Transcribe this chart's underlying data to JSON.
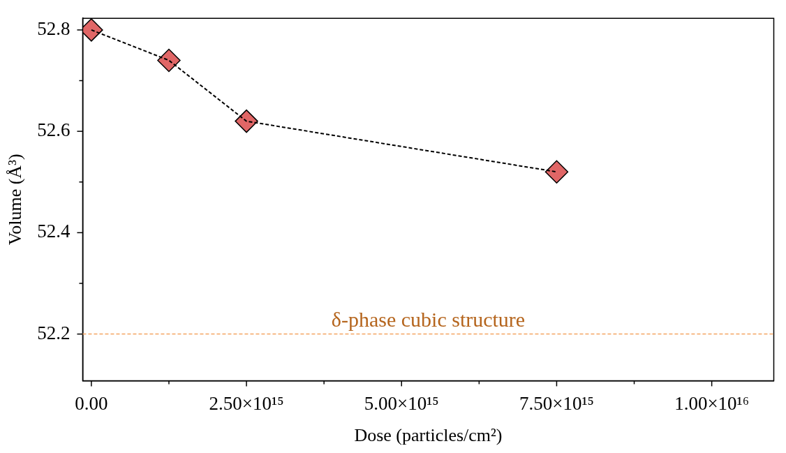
{
  "chart_data": {
    "type": "line",
    "xlabel": "Dose (particles/cm²)",
    "ylabel": "Volume (Å³)",
    "x": [
      0,
      1250000000000000.0,
      2500000000000000.0,
      7500000000000000.0
    ],
    "series": [
      {
        "color": "#e06666",
        "values": [
          52.8,
          52.74,
          52.62,
          52.52
        ]
      }
    ],
    "xlim": [
      -140000000000000.0,
      1.1e+16
    ],
    "ylim": [
      52.108,
      52.823
    ],
    "xticks": [
      {
        "value": 0,
        "label": "0.00"
      },
      {
        "value": 1250000000000000.0,
        "label": null
      },
      {
        "value": 2500000000000000.0,
        "label": "2.50×10¹⁵"
      },
      {
        "value": 3750000000000000.0,
        "label": null
      },
      {
        "value": 5000000000000000.0,
        "label": "5.00×10¹⁵"
      },
      {
        "value": 6250000000000000.0,
        "label": null
      },
      {
        "value": 7500000000000000.0,
        "label": "7.50×10¹⁵"
      },
      {
        "value": 8750000000000000.0,
        "label": null
      },
      {
        "value": 1e+16,
        "label": "1.00×10¹⁶"
      }
    ],
    "yticks": [
      {
        "value": 52.2,
        "label": "52.2"
      },
      {
        "value": 52.3,
        "label": null
      },
      {
        "value": 52.4,
        "label": "52.4"
      },
      {
        "value": 52.5,
        "label": null
      },
      {
        "value": 52.6,
        "label": "52.6"
      },
      {
        "value": 52.7,
        "label": null
      },
      {
        "value": 52.8,
        "label": "52.8"
      }
    ],
    "ref_lines": [
      {
        "axis": "y",
        "value": 52.2,
        "label": "δ-phase cubic structure",
        "color": "#f4a460",
        "line_style": "dashed"
      }
    ],
    "marker": "diamond",
    "line_style": "dashed",
    "grid": false,
    "legend": false
  }
}
